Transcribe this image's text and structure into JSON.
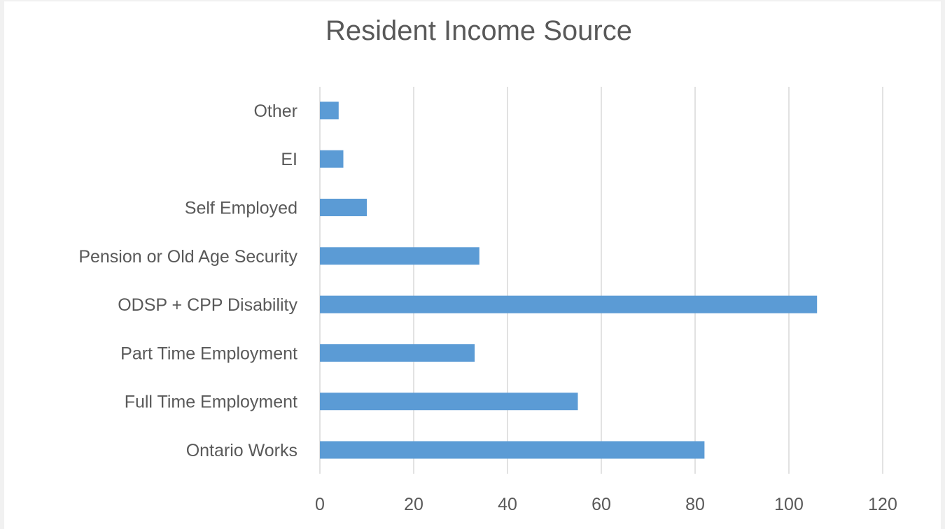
{
  "chart_data": {
    "type": "bar",
    "orientation": "horizontal",
    "title": "Resident Income Source",
    "categories": [
      "Ontario Works",
      "Full Time Employment",
      "Part Time Employment",
      "ODSP + CPP Disability",
      "Pension or Old Age Security",
      "Self Employed",
      "EI",
      "Other"
    ],
    "values": [
      82,
      55,
      33,
      106,
      34,
      10,
      5,
      4
    ],
    "xlim": [
      0,
      120
    ],
    "xticks": [
      "0",
      "20",
      "40",
      "60",
      "80",
      "100",
      "120"
    ],
    "grid": "vertical",
    "legend": "none",
    "bar_color": "#5b9bd5",
    "grid_color": "#d9d9d9",
    "text_color": "#595959"
  }
}
